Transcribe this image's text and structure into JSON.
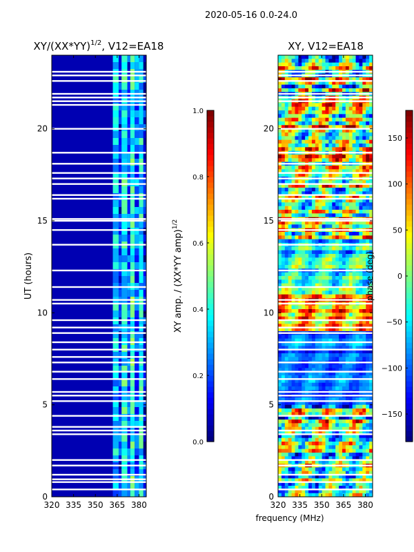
{
  "page_title": "2020-05-16 0.0-24.0",
  "xlabel": "frequency (MHz)",
  "colors": {
    "jet": [
      "#00007f",
      "#0000ff",
      "#007fff",
      "#00ffff",
      "#7fff7f",
      "#ffff00",
      "#ff7f00",
      "#ff0000",
      "#7f0000"
    ]
  },
  "chart_data": [
    {
      "type": "heatmap",
      "title_main": "XY/(XX*YY)",
      "title_sup": "1/2",
      "title_tail": ", V12=EA18",
      "ylabel": "UT (hours)",
      "xlim": [
        320,
        385
      ],
      "ylim": [
        0,
        24
      ],
      "xticks": [
        "320",
        "335",
        "350",
        "365",
        "380"
      ],
      "xtick_values": [
        320,
        335,
        350,
        365,
        380
      ],
      "yticks": [
        "0",
        "5",
        "10",
        "15",
        "20"
      ],
      "ytick_values": [
        0,
        5,
        10,
        15,
        20
      ],
      "colorbar": {
        "label_main": "XY amp. / (XX*YY amp)",
        "label_sup": "1/2",
        "range": [
          0.0,
          1.0
        ],
        "ticks": [
          "0.0",
          "0.2",
          "0.4",
          "0.6",
          "0.8",
          "1.0"
        ],
        "tick_values": [
          0.0,
          0.2,
          0.4,
          0.6,
          0.8,
          1.0
        ]
      },
      "flagged_hours": [
        0.4,
        0.8,
        0.95,
        1.2,
        1.7,
        2.0,
        3.4,
        3.6,
        3.8,
        4.4,
        5.2,
        5.5,
        5.7,
        6.4,
        6.8,
        7.3,
        7.6,
        8.0,
        8.4,
        8.9,
        9.2,
        9.6,
        10.5,
        10.7,
        11.4,
        12.3,
        13.7,
        14.5,
        15.0,
        15.1,
        16.2,
        16.4,
        17.0,
        17.3,
        17.6,
        18.1,
        18.7,
        20.0,
        21.3,
        21.5,
        21.7,
        21.9,
        22.6,
        22.9,
        23.1
      ],
      "band_values": [
        {
          "x_from": 320,
          "x_to": 362,
          "value": 0.05
        },
        {
          "x_from": 362,
          "x_to": 366,
          "value": 0.32
        },
        {
          "x_from": 366,
          "x_to": 368,
          "value": 0.15
        },
        {
          "x_from": 368,
          "x_to": 372,
          "value": 0.38
        },
        {
          "x_from": 372,
          "x_to": 374,
          "value": 0.18
        },
        {
          "x_from": 374,
          "x_to": 377,
          "value": 0.42
        },
        {
          "x_from": 377,
          "x_to": 380,
          "value": 0.22
        },
        {
          "x_from": 380,
          "x_to": 383,
          "value": 0.36
        },
        {
          "x_from": 383,
          "x_to": 385,
          "value": 0.12
        }
      ]
    },
    {
      "type": "heatmap",
      "title_main": "XY, V12=EA18",
      "xlim": [
        320,
        385
      ],
      "ylim": [
        0,
        24
      ],
      "xticks": [
        "320",
        "335",
        "350",
        "365",
        "380"
      ],
      "xtick_values": [
        320,
        335,
        350,
        365,
        380
      ],
      "yticks": [
        "0",
        "5",
        "10",
        "15",
        "20"
      ],
      "ytick_values": [
        0,
        5,
        10,
        15,
        20
      ],
      "colorbar": {
        "label_main": "phase (deg)",
        "range": [
          -180,
          180
        ],
        "ticks": [
          "−150",
          "−100",
          "−50",
          "0",
          "50",
          "100",
          "150"
        ],
        "tick_values": [
          -150,
          -100,
          -50,
          0,
          50,
          100,
          150
        ]
      },
      "flagged_hours": [
        0.4,
        0.8,
        1.2,
        1.7,
        2.0,
        3.4,
        3.6,
        4.4,
        5.2,
        5.5,
        5.7,
        6.4,
        6.8,
        7.3,
        8.0,
        8.4,
        8.9,
        9.2,
        9.6,
        10.5,
        10.7,
        11.4,
        12.3,
        13.7,
        14.5,
        15.0,
        15.1,
        16.2,
        16.4,
        17.0,
        17.3,
        17.6,
        18.1,
        18.7,
        20.0,
        21.5,
        21.7,
        21.9,
        22.6,
        22.9,
        23.1
      ],
      "regions": [
        {
          "hours": [
            0.0,
            5.0
          ],
          "base": -20,
          "spread": 160
        },
        {
          "hours": [
            5.0,
            9.0
          ],
          "base": -100,
          "spread": 50
        },
        {
          "hours": [
            9.0,
            11.0
          ],
          "base": 60,
          "spread": 110
        },
        {
          "hours": [
            11.0,
            14.0
          ],
          "base": -40,
          "spread": 90
        },
        {
          "hours": [
            14.0,
            18.0
          ],
          "base": 20,
          "spread": 150
        },
        {
          "hours": [
            18.0,
            21.0
          ],
          "base": 40,
          "spread": 160
        },
        {
          "hours": [
            21.0,
            24.0
          ],
          "base": 0,
          "spread": 170
        }
      ]
    }
  ]
}
